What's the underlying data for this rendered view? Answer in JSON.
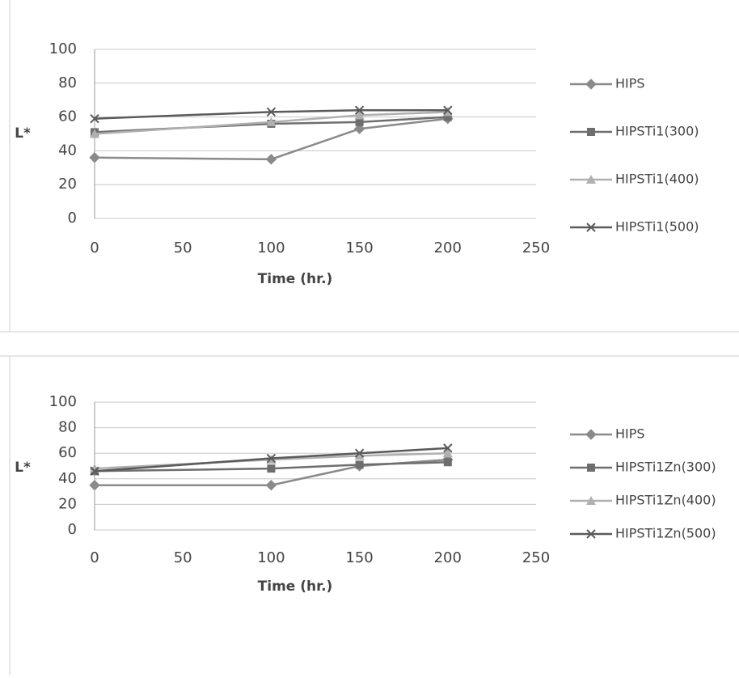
{
  "chart_data": [
    {
      "type": "line",
      "x": [
        0,
        100,
        150,
        200
      ],
      "xlim": [
        0,
        250
      ],
      "xticks": [
        0,
        50,
        100,
        150,
        200,
        250
      ],
      "ylim": [
        0,
        100
      ],
      "yticks": [
        0,
        20,
        40,
        60,
        80,
        100
      ],
      "grid": true,
      "xlabel": "Time (hr.)",
      "ylabel": "L*",
      "series": [
        {
          "name": "HIPS",
          "color": "#8a8a8a",
          "marker": "diamond",
          "values": [
            36,
            35,
            53,
            59
          ]
        },
        {
          "name": "HIPSTi1(300)",
          "color": "#6e6e6e",
          "marker": "square",
          "values": [
            51,
            56,
            57,
            60
          ]
        },
        {
          "name": "HIPSTi1(400)",
          "color": "#b0b0b0",
          "marker": "triangle",
          "values": [
            50,
            57,
            61,
            63
          ]
        },
        {
          "name": "HIPSTi1(500)",
          "color": "#5a5a5a",
          "marker": "x",
          "values": [
            59,
            63,
            64,
            64
          ]
        }
      ]
    },
    {
      "type": "line",
      "x": [
        0,
        100,
        150,
        200
      ],
      "xlim": [
        0,
        250
      ],
      "xticks": [
        0,
        50,
        100,
        150,
        200,
        250
      ],
      "ylim": [
        0,
        100
      ],
      "yticks": [
        0,
        20,
        40,
        60,
        80,
        100
      ],
      "grid": true,
      "xlabel": "Time (hr.)",
      "ylabel": "L*",
      "series": [
        {
          "name": "HIPS",
          "color": "#8a8a8a",
          "marker": "diamond",
          "values": [
            35,
            35,
            50,
            55
          ]
        },
        {
          "name": "HIPSTi1Zn(300)",
          "color": "#6e6e6e",
          "marker": "square",
          "values": [
            46,
            48,
            51,
            53
          ]
        },
        {
          "name": "HIPSTi1Zn(400)",
          "color": "#b0b0b0",
          "marker": "triangle",
          "values": [
            48,
            55,
            58,
            60
          ]
        },
        {
          "name": "HIPSTi1Zn(500)",
          "color": "#5a5a5a",
          "marker": "x",
          "values": [
            46,
            56,
            60,
            64
          ]
        }
      ]
    }
  ]
}
